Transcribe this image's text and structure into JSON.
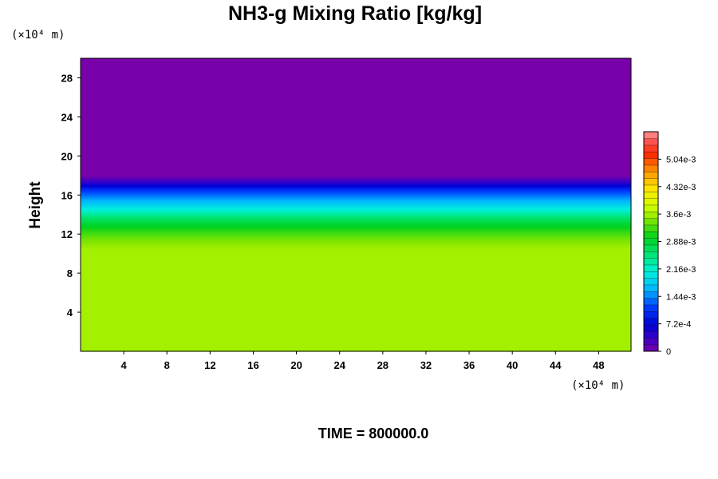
{
  "chart_data": {
    "type": "heatmap",
    "title": "NH3-g Mixing Ratio [kg/kg]",
    "xlabel": "",
    "ylabel": "Height",
    "x_unit": "(×10⁴ m)",
    "y_unit": "(×10⁴ m)",
    "xlim": [
      0,
      51
    ],
    "ylim": [
      0,
      30
    ],
    "x_ticks": [
      4,
      8,
      12,
      16,
      20,
      24,
      28,
      32,
      36,
      40,
      44,
      48
    ],
    "y_ticks": [
      4,
      8,
      12,
      16,
      20,
      24,
      28
    ],
    "colorbar": {
      "min": 0,
      "max": 0.00576,
      "tick_values": [
        0,
        0.00072,
        0.00144,
        0.00216,
        0.00288,
        0.0036,
        0.00432,
        0.00504
      ],
      "tick_labels": [
        "0",
        "7.2e-4",
        "1.44e-3",
        "2.16e-3",
        "2.88e-3",
        "3.6e-3",
        "4.32e-3",
        "5.04e-3"
      ],
      "levels": 33
    },
    "vertical_profile": [
      {
        "height": 0,
        "value": 0.0036
      },
      {
        "height": 10.5,
        "value": 0.0036
      },
      {
        "height": 11.5,
        "value": 0.0034
      },
      {
        "height": 12.5,
        "value": 0.0031
      },
      {
        "height": 13.5,
        "value": 0.0027
      },
      {
        "height": 14.5,
        "value": 0.0021
      },
      {
        "height": 15.5,
        "value": 0.0016
      },
      {
        "height": 16.5,
        "value": 0.0011
      },
      {
        "height": 17.2,
        "value": 0.0005
      },
      {
        "height": 18,
        "value": 0.0
      },
      {
        "height": 30,
        "value": 0.0
      }
    ],
    "grid": false
  },
  "footer": {
    "time_label": "TIME = 800000.0"
  }
}
